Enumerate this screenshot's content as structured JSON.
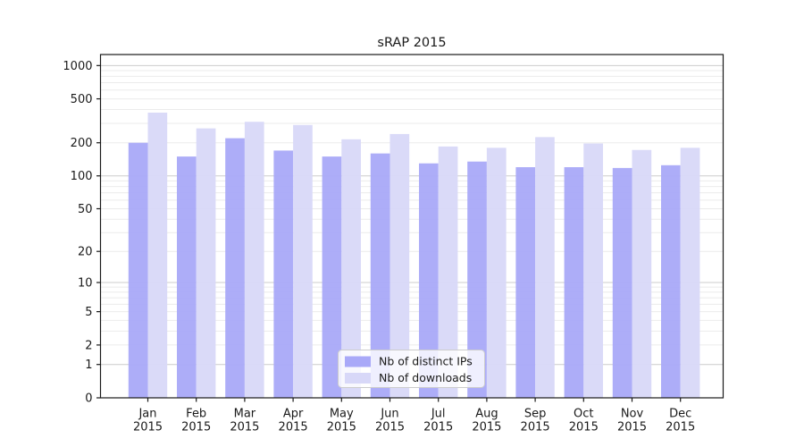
{
  "figure": {
    "title": "sRAP 2015",
    "background": "#ffffff"
  },
  "chart_data": {
    "type": "bar",
    "title": "sRAP 2015",
    "categories": [
      "Jan 2015",
      "Feb 2015",
      "Mar 2015",
      "Apr 2015",
      "May 2015",
      "Jun 2015",
      "Jul 2015",
      "Aug 2015",
      "Sep 2015",
      "Oct 2015",
      "Nov 2015",
      "Dec 2015"
    ],
    "series": [
      {
        "name": "Nb of distinct IPs",
        "color": "#a9a9f8",
        "values": [
          200,
          150,
          220,
          170,
          150,
          160,
          130,
          135,
          120,
          120,
          118,
          125
        ]
      },
      {
        "name": "Nb of downloads",
        "color": "#d8d8f8",
        "values": [
          375,
          270,
          310,
          290,
          215,
          240,
          185,
          180,
          225,
          197,
          172,
          180
        ]
      }
    ],
    "xlabel": "",
    "ylabel": "",
    "yscale": "symlog",
    "y_ticks": [
      0,
      1,
      2,
      5,
      10,
      20,
      50,
      100,
      200,
      500,
      1000
    ],
    "ylim": [
      0,
      1258
    ],
    "grid": true,
    "grid_major_color": "#cccccc",
    "grid_minor_color": "#ebebeb",
    "axis_color": "#1a1a1a",
    "legend_position": "lower center"
  }
}
